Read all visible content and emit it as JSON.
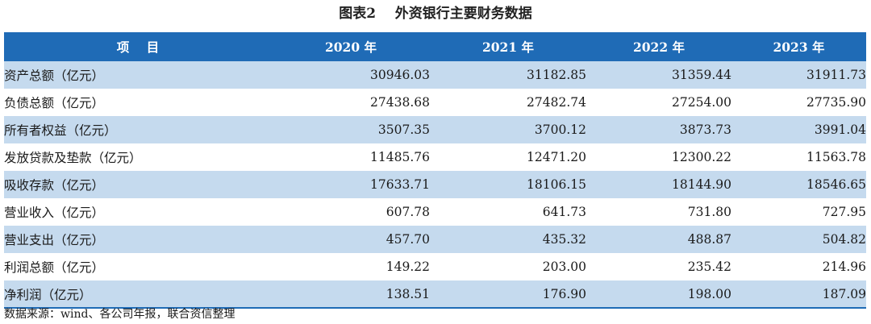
{
  "caption": "图表2    外资银行主要财务数据",
  "table": {
    "headers": [
      "项    目",
      "2020 年",
      "2021 年",
      "2022 年",
      "2023 年"
    ],
    "rows": [
      {
        "item": "资产总额（亿元）",
        "values": [
          "30946.03",
          "31182.85",
          "31359.44",
          "31911.73"
        ]
      },
      {
        "item": "负债总额（亿元）",
        "values": [
          "27438.68",
          "27482.74",
          "27254.00",
          "27735.90"
        ]
      },
      {
        "item": "所有者权益（亿元）",
        "values": [
          "3507.35",
          "3700.12",
          "3873.73",
          "3991.04"
        ]
      },
      {
        "item": "发放贷款及垫款（亿元）",
        "values": [
          "11485.76",
          "12471.20",
          "12300.22",
          "11563.78"
        ]
      },
      {
        "item": "吸收存款（亿元）",
        "values": [
          "17633.71",
          "18106.15",
          "18144.90",
          "18546.65"
        ]
      },
      {
        "item": "营业收入（亿元）",
        "values": [
          "607.78",
          "641.73",
          "731.80",
          "727.95"
        ]
      },
      {
        "item": "营业支出（亿元）",
        "values": [
          "457.70",
          "435.32",
          "488.87",
          "504.82"
        ]
      },
      {
        "item": "利润总额（亿元）",
        "values": [
          "149.22",
          "203.00",
          "235.42",
          "214.96"
        ]
      },
      {
        "item": "净利润（亿元）",
        "values": [
          "138.51",
          "176.90",
          "198.00",
          "187.09"
        ]
      }
    ]
  },
  "source": "数据来源：wind、各公司年报，联合资信整理",
  "colors": {
    "header_bg": "#1f6bb6",
    "band_bg": "#c5daee"
  }
}
